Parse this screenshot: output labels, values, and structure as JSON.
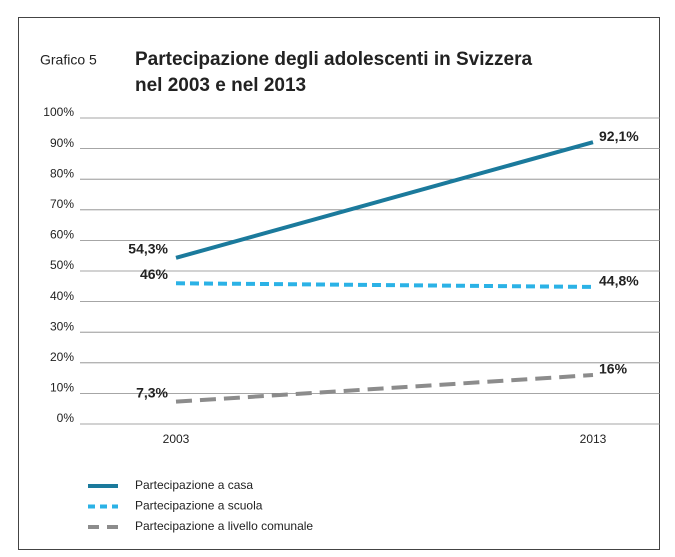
{
  "chart_data": {
    "type": "line",
    "label": "Grafico 5",
    "title": "Partecipazione degli adolescenti in Svizzera nel 2003 e nel 2013",
    "categories": [
      "2003",
      "2013"
    ],
    "series": [
      {
        "name": "Partecipazione a casa",
        "color": "#1b7a9c",
        "dash": "solid",
        "values": [
          54.3,
          92.1
        ],
        "value_labels": [
          "54,3%",
          "92,1%"
        ]
      },
      {
        "name": "Partecipazione a scuola",
        "color": "#2bb2e6",
        "dash": "dashed",
        "values": [
          46,
          44.8
        ],
        "value_labels": [
          "46%",
          "44,8%"
        ]
      },
      {
        "name": "Partecipazione a livello comunale",
        "color": "#8c8c8c",
        "dash": "longdash",
        "values": [
          7.3,
          16
        ],
        "value_labels": [
          "7,3%",
          "16%"
        ]
      }
    ],
    "ylim": [
      0,
      100
    ],
    "yticks": [
      {
        "value": 0,
        "label": "0%"
      },
      {
        "value": 10,
        "label": "10%"
      },
      {
        "value": 20,
        "label": "20%"
      },
      {
        "value": 30,
        "label": "30%"
      },
      {
        "value": 40,
        "label": "40%"
      },
      {
        "value": 50,
        "label": "50%"
      },
      {
        "value": 60,
        "label": "60%"
      },
      {
        "value": 70,
        "label": "70%"
      },
      {
        "value": 80,
        "label": "80%"
      },
      {
        "value": 90,
        "label": "90%"
      },
      {
        "value": 100,
        "label": "100%"
      }
    ],
    "grid": true
  }
}
